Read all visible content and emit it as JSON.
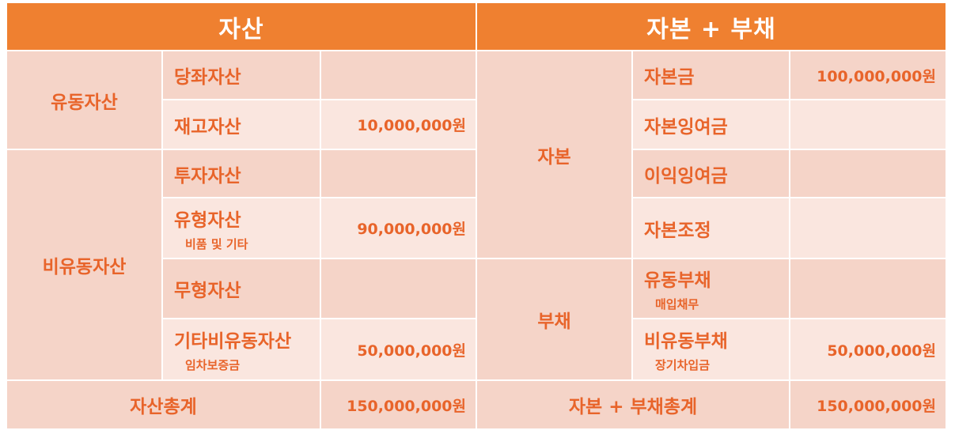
{
  "colors": {
    "header": "#ef8030",
    "cell_dark": "#f5d4c8",
    "cell_light": "#fae6df",
    "text": "#e8642a",
    "header_text": "#ffffff"
  },
  "header": {
    "assets": "자산",
    "capital_liabilities": "자본 + 부채"
  },
  "assets": {
    "current": {
      "label": "유동자산",
      "items": [
        {
          "label": "당좌자산",
          "amount": ""
        },
        {
          "label": "재고자산",
          "amount": "10,000,000원"
        }
      ]
    },
    "noncurrent": {
      "label": "비유동자산",
      "items": [
        {
          "label": "투자자산",
          "amount": ""
        },
        {
          "label": "유형자산",
          "sub": "비품 및 기타",
          "amount": "90,000,000원"
        },
        {
          "label": "무형자산",
          "amount": ""
        },
        {
          "label": "기타비유동자산",
          "sub": "임차보증금",
          "amount": "50,000,000원"
        }
      ]
    },
    "total": {
      "label": "자산총계",
      "amount": "150,000,000원"
    }
  },
  "capital": {
    "label": "자본",
    "items": [
      {
        "label": "자본금",
        "amount": "100,000,000원"
      },
      {
        "label": "자본잉여금",
        "amount": ""
      },
      {
        "label": "이익잉여금",
        "amount": ""
      },
      {
        "label": "자본조정",
        "amount": ""
      }
    ]
  },
  "liabilities": {
    "label": "부채",
    "items": [
      {
        "label": "유동부채",
        "sub": "매입채무",
        "amount": ""
      },
      {
        "label": "비유동부채",
        "sub": "장기차입금",
        "amount": "50,000,000원"
      }
    ]
  },
  "total_right": {
    "label": "자본 + 부채총계",
    "amount": "150,000,000원"
  }
}
